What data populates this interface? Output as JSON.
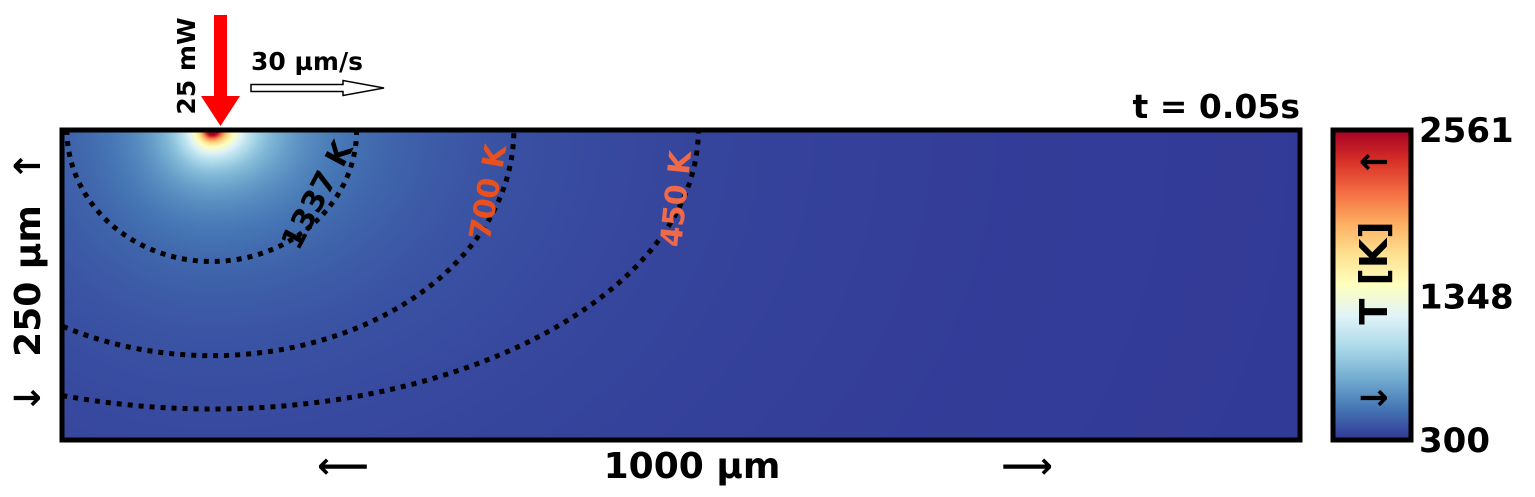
{
  "chart_data": {
    "type": "heatmap",
    "title": "t = 0.05s",
    "laser": {
      "power_label": "25 mW",
      "speed_label": "30 µm/s"
    },
    "domain": {
      "width_um": 1000,
      "depth_um": 250
    },
    "xlabel": "1000 µm",
    "ylabel": "250 µm",
    "x_arrow_left": "⟵",
    "x_arrow_right": "⟶",
    "y_arrow_down": "↓",
    "y_arrow_up": "↑",
    "source_x_um": 121,
    "peak_temperature_K": 2561,
    "ambient_temperature_K": 300,
    "contours": [
      {
        "level_K": 1337,
        "label": "1337 K",
        "color": "#000000",
        "surface_x_um": 238,
        "depth_at_center_um": 106
      },
      {
        "level_K": 700,
        "label": "700 K",
        "color": "#e8501e",
        "surface_x_um": 365,
        "depth_at_center_um": 182
      },
      {
        "level_K": 450,
        "label": "450 K",
        "color": "#f06a4a",
        "surface_x_um": 514,
        "depth_at_center_um": 225
      }
    ],
    "colorbar": {
      "label": "T [K]",
      "ticks": [
        300,
        1348,
        2561
      ],
      "tick_labels": [
        "300",
        "1348",
        "2561"
      ],
      "arrow_down": "↓",
      "arrow_up": "↑",
      "colormap": "RdYlBu_r",
      "vmin": 300,
      "vmax": 2561
    }
  }
}
